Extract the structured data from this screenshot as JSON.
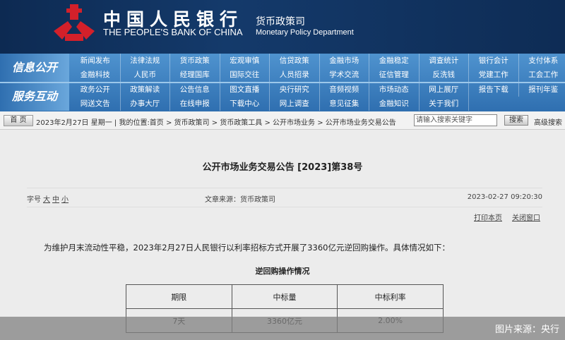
{
  "header": {
    "logo_cn": "中国人民银行",
    "logo_en": "THE PEOPLE'S BANK OF CHINA",
    "dept_cn": "货币政策司",
    "dept_en": "Monetary Policy Department"
  },
  "nav": {
    "sections": [
      {
        "label": "信息公开",
        "rows": [
          [
            "新闻发布",
            "法律法规",
            "货币政策",
            "宏观审慎",
            "信贷政策",
            "金融市场",
            "金融稳定",
            "调查统计",
            "银行会计",
            "支付体系"
          ],
          [
            "金融科技",
            "人民币",
            "经理国库",
            "国际交往",
            "人员招录",
            "学术交流",
            "征信管理",
            "反洗钱",
            "党建工作",
            "工会工作"
          ]
        ]
      },
      {
        "label": "服务互动",
        "rows": [
          [
            "政务公开",
            "政策解读",
            "公告信息",
            "图文直播",
            "央行研究",
            "音频视频",
            "市场动态",
            "网上展厅",
            "报告下载",
            "报刊年鉴"
          ],
          [
            "网送文告",
            "办事大厅",
            "在线申报",
            "下载中心",
            "网上调查",
            "意见征集",
            "金融知识",
            "关于我们"
          ]
        ]
      }
    ]
  },
  "breadcrumb": {
    "home": "首 页",
    "text": "2023年2月27日 星期一 | 我的位置:首页 > 货币政策司 > 货币政策工具 > 公开市场业务 > 公开市场业务交易公告",
    "search_placeholder": "请输入搜索关键字",
    "search_btn": "搜索",
    "advanced": "高级搜索"
  },
  "article": {
    "title": "公开市场业务交易公告 [2023]第38号",
    "font_label": "字号",
    "font_sizes": [
      "大",
      "中",
      "小"
    ],
    "source": "文章来源：货币政策司",
    "datetime": "2023-02-27 09:20:30",
    "print": "打印本页",
    "close": "关闭窗口",
    "body": "为维护月末流动性平稳，2023年2月27日人民银行以利率招标方式开展了3360亿元逆回购操作。具体情况如下：",
    "table_title": "逆回购操作情况",
    "headers": [
      "期限",
      "中标量",
      "中标利率"
    ],
    "rows": [
      [
        "7天",
        "3360亿元",
        "2.00%"
      ]
    ]
  },
  "credit": "图片来源：央行"
}
